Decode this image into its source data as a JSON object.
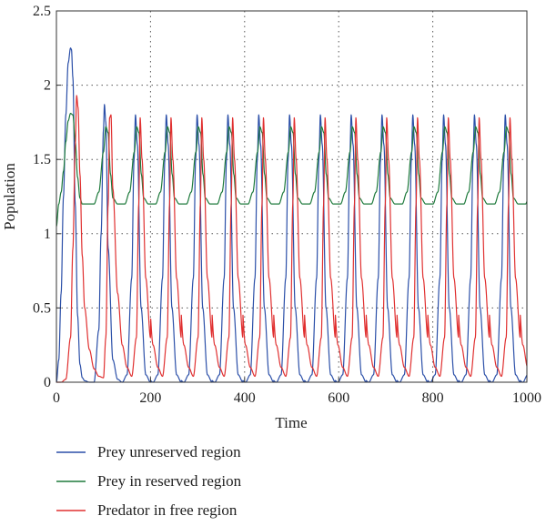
{
  "chart_data": {
    "type": "line",
    "title": "",
    "xlabel": "Time",
    "ylabel": "Population",
    "xlim": [
      0,
      1000
    ],
    "ylim": [
      0,
      2.5
    ],
    "x_ticks": [
      0,
      200,
      400,
      600,
      800,
      1000
    ],
    "y_ticks": [
      0,
      0.5,
      1,
      1.5,
      2,
      2.5
    ],
    "x_tick_labels": [
      "0",
      "200",
      "400",
      "600",
      "800",
      "1000"
    ],
    "y_tick_labels": [
      "0",
      "0.5",
      "1",
      "1.5",
      "2",
      "2.5"
    ],
    "grid": "dotted",
    "legend_position": "below-left",
    "period": 65.5,
    "series": [
      {
        "name": "Prey unreserved region",
        "color": "#2b4fa8",
        "x": [
          0,
          5,
          10,
          15,
          20,
          25,
          30,
          32,
          35,
          40,
          45,
          50,
          55,
          60,
          70,
          80,
          90,
          95,
          100,
          102,
          105,
          110,
          120,
          130,
          140,
          150,
          160,
          165,
          168,
          172,
          180,
          190,
          200
        ],
        "values": [
          0.0,
          0.15,
          0.6,
          1.25,
          1.8,
          2.15,
          2.25,
          2.24,
          2.05,
          1.2,
          0.45,
          0.12,
          0.03,
          0.01,
          0.0,
          0.0,
          0.35,
          1.0,
          1.7,
          1.87,
          1.75,
          0.9,
          0.15,
          0.02,
          0.0,
          0.05,
          0.7,
          1.5,
          1.8,
          1.6,
          0.5,
          0.05,
          0.0
        ],
        "peak_value_steady": 1.77
      },
      {
        "name": "Prey in reserved region",
        "color": "#1e7a3c",
        "x": [
          0,
          5,
          10,
          15,
          20,
          25,
          30,
          35,
          40,
          45,
          50,
          55,
          60,
          65,
          70,
          80,
          90,
          100,
          105,
          110,
          115,
          120,
          130
        ],
        "values": [
          1.05,
          1.2,
          1.28,
          1.42,
          1.62,
          1.76,
          1.81,
          1.8,
          1.62,
          1.38,
          1.24,
          1.2,
          1.2,
          1.2,
          1.2,
          1.2,
          1.28,
          1.55,
          1.72,
          1.68,
          1.4,
          1.24,
          1.2
        ],
        "peak_value_steady": 1.72,
        "min_value_steady": 1.2
      },
      {
        "name": "Predator in free region",
        "color": "#e03030",
        "x": [
          0,
          10,
          20,
          30,
          35,
          40,
          43,
          46,
          50,
          55,
          60,
          70,
          80,
          90,
          100,
          105,
          110,
          113,
          116,
          120,
          130,
          140,
          150,
          160,
          170,
          175,
          178,
          182,
          190,
          200
        ],
        "values": [
          0.0,
          0.0,
          0.02,
          0.3,
          0.9,
          1.6,
          1.93,
          1.85,
          1.4,
          0.85,
          0.5,
          0.22,
          0.09,
          0.04,
          0.03,
          0.3,
          1.2,
          1.78,
          1.8,
          1.3,
          0.6,
          0.25,
          0.1,
          0.04,
          0.3,
          1.2,
          1.78,
          1.5,
          0.7,
          0.3
        ],
        "peak_value_steady": 1.77
      }
    ]
  }
}
